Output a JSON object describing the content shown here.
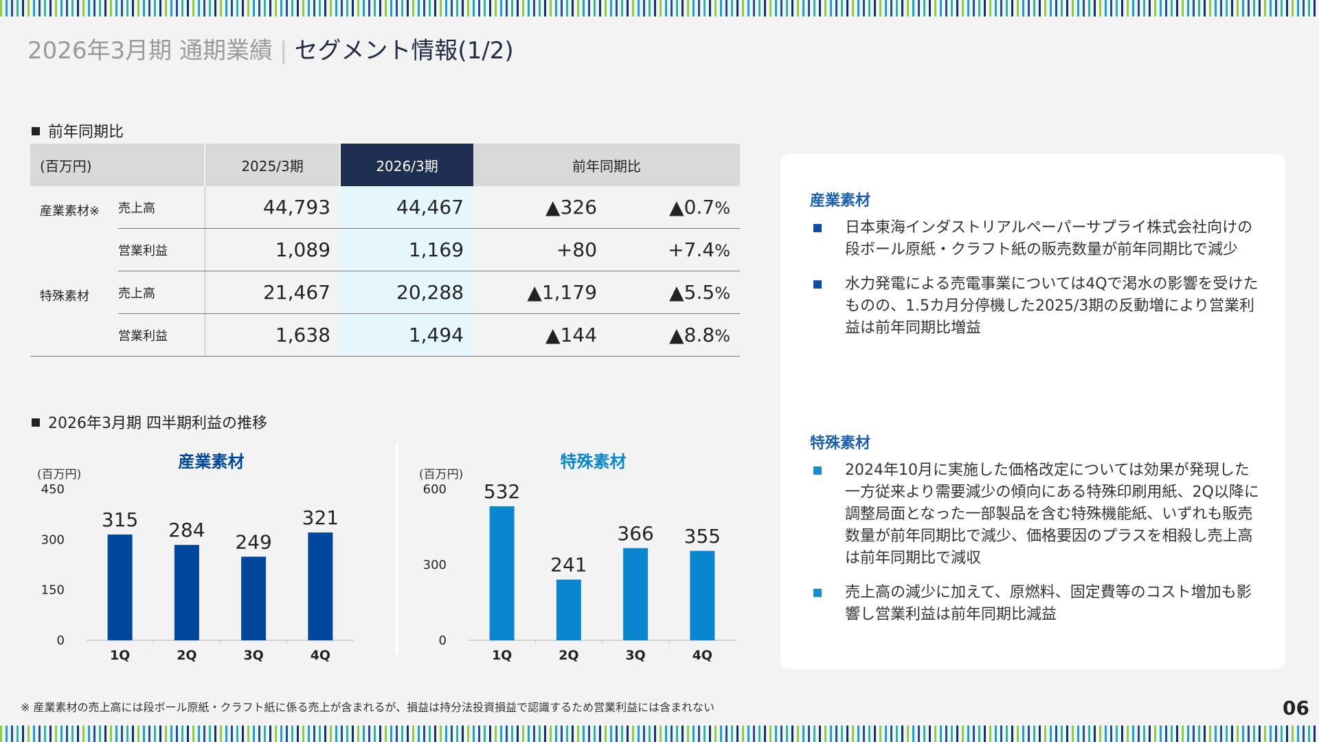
{
  "header": {
    "title_gray": "2026年3月期 通期業績",
    "title_sep": "|",
    "title_main": "セグメント情報(1/2)"
  },
  "colors": {
    "industrial": "#00479d",
    "specialty": "#0a85d0",
    "header_dark": "#1f2f52",
    "highlight": "#e5f6fd"
  },
  "table_section": {
    "label": "前年同期比",
    "headers": [
      "(百万円)",
      "2025/3期",
      "2026/3期",
      "前年同期比"
    ],
    "rows": [
      {
        "segment": "産業素材※",
        "item": "売上高",
        "prev": "44,793",
        "cur": "44,467",
        "diff": "▲326",
        "pct": "▲0.7",
        "pct_unit": "%"
      },
      {
        "segment": "",
        "item": "営業利益",
        "prev": "1,089",
        "cur": "1,169",
        "diff": "+80",
        "pct": "+7.4",
        "pct_unit": "%"
      },
      {
        "segment": "特殊素材",
        "item": "売上高",
        "prev": "21,467",
        "cur": "20,288",
        "diff": "▲1,179",
        "pct": "▲5.5",
        "pct_unit": "%"
      },
      {
        "segment": "",
        "item": "営業利益",
        "prev": "1,638",
        "cur": "1,494",
        "diff": "▲144",
        "pct": "▲8.8",
        "pct_unit": "%"
      }
    ]
  },
  "chart_section": {
    "label": "2026年3月期 四半期利益の推移"
  },
  "chart_data": [
    {
      "type": "bar",
      "title": "産業素材",
      "unit": "(百万円)",
      "categories": [
        "1Q",
        "2Q",
        "3Q",
        "4Q"
      ],
      "values": [
        315,
        284,
        249,
        321
      ],
      "ylim": [
        0,
        450
      ],
      "yticks": [
        0,
        150,
        300,
        450
      ],
      "color": "#00479d",
      "grid": false
    },
    {
      "type": "bar",
      "title": "特殊素材",
      "unit": "(百万円)",
      "categories": [
        "1Q",
        "2Q",
        "3Q",
        "4Q"
      ],
      "values": [
        532,
        241,
        366,
        355
      ],
      "ylim": [
        0,
        600
      ],
      "yticks": [
        0,
        300,
        600
      ],
      "color": "#0a85d0",
      "grid": false
    }
  ],
  "commentary": {
    "industrial": {
      "heading": "産業素材",
      "bullets": [
        "日本東海インダストリアルペーパーサプライ株式会社向けの段ボール原紙・クラフト紙の販売数量が前年同期比で減少",
        "水力発電による売電事業については4Qで渇水の影響を受けたものの、1.5カ月分停機した2025/3期の反動増により営業利益は前年同期比増益"
      ]
    },
    "specialty": {
      "heading": "特殊素材",
      "bullets": [
        "2024年10月に実施した価格改定については効果が発現した一方従来より需要減少の傾向にある特殊印刷用紙、2Q以降に調整局面となった一部製品を含む特殊機能紙、いずれも販売数量が前年同期比で減少、価格要因のプラスを相殺し売上高は前年同期比で減収",
        "売上高の減少に加えて、原燃料、固定費等のコスト増加も影響し営業利益は前年同期比減益"
      ]
    }
  },
  "footer": {
    "footnote": "※ 産業素材の売上高には段ボール原紙・クラフト紙に係る売上が含まれるが、損益は持分法投資損益で認識するため営業利益には含まれない",
    "page": "06"
  }
}
